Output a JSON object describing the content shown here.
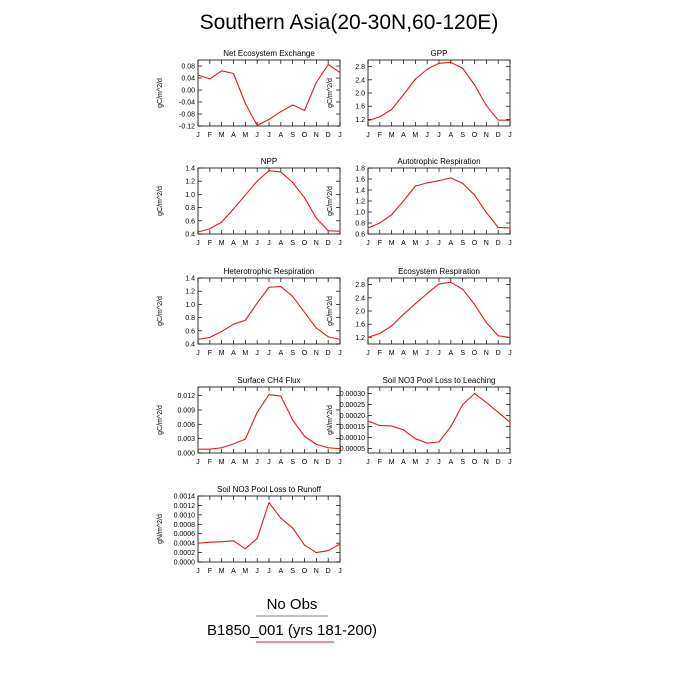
{
  "title": "Southern Asia(20-30N,60-120E)",
  "legend": {
    "obs_label": "No Obs",
    "model_label": "B1850_001 (yrs 181-200)",
    "model_color": "#e31a1c"
  },
  "months": [
    "J",
    "F",
    "M",
    "A",
    "M",
    "J",
    "J",
    "A",
    "S",
    "O",
    "N",
    "D",
    "J"
  ],
  "chart_data": [
    {
      "type": "line",
      "title": "Net Ecosystem Exchange",
      "ylabel": "gC/m^2/d",
      "ylim": [
        -0.12,
        0.1
      ],
      "yticks": [
        "0.08",
        "0.04",
        "0.00",
        "-0.04",
        "-0.08",
        "-0.12"
      ],
      "ytick_values": [
        0.08,
        0.04,
        0.0,
        -0.04,
        -0.08,
        -0.12
      ],
      "series": [
        {
          "values": [
            0.05,
            0.037,
            0.064,
            0.055,
            -0.045,
            -0.118,
            -0.098,
            -0.072,
            -0.05,
            -0.068,
            0.025,
            0.085,
            0.058
          ]
        }
      ]
    },
    {
      "type": "line",
      "title": "GPP",
      "ylabel": "gC/m^2/d",
      "ylim": [
        1.0,
        3.0
      ],
      "yticks": [
        "2.8",
        "2.4",
        "2.0",
        "1.6",
        "1.2"
      ],
      "ytick_values": [
        2.8,
        2.4,
        2.0,
        1.6,
        1.2
      ],
      "series": [
        {
          "values": [
            1.16,
            1.28,
            1.5,
            1.95,
            2.42,
            2.72,
            2.9,
            2.93,
            2.75,
            2.25,
            1.62,
            1.18,
            1.17
          ]
        }
      ]
    },
    {
      "type": "line",
      "title": "NPP",
      "ylabel": "gC/m^2/d",
      "ylim": [
        0.4,
        1.4
      ],
      "yticks": [
        "1.4",
        "1.2",
        "1.0",
        "0.8",
        "0.6",
        "0.4"
      ],
      "ytick_values": [
        1.4,
        1.2,
        1.0,
        0.8,
        0.6,
        0.4
      ],
      "series": [
        {
          "values": [
            0.43,
            0.48,
            0.58,
            0.78,
            0.99,
            1.2,
            1.36,
            1.34,
            1.18,
            0.95,
            0.64,
            0.45,
            0.44
          ]
        }
      ]
    },
    {
      "type": "line",
      "title": "Autotrophic Respiration",
      "ylabel": "gC/m^2/d",
      "ylim": [
        0.6,
        1.8
      ],
      "yticks": [
        "1.8",
        "1.6",
        "1.4",
        "1.2",
        "1.0",
        "0.8",
        "0.6"
      ],
      "ytick_values": [
        1.8,
        1.6,
        1.4,
        1.2,
        1.0,
        0.8,
        0.6
      ],
      "series": [
        {
          "values": [
            0.71,
            0.8,
            0.95,
            1.2,
            1.47,
            1.53,
            1.57,
            1.62,
            1.52,
            1.31,
            0.99,
            0.72,
            0.71
          ]
        }
      ]
    },
    {
      "type": "line",
      "title": "Heterotrophic Respiration",
      "ylabel": "gC/m^2/d",
      "ylim": [
        0.4,
        1.4
      ],
      "yticks": [
        "1.4",
        "1.2",
        "1.0",
        "0.8",
        "0.6",
        "0.4"
      ],
      "ytick_values": [
        1.4,
        1.2,
        1.0,
        0.8,
        0.6,
        0.4
      ],
      "series": [
        {
          "values": [
            0.47,
            0.5,
            0.59,
            0.7,
            0.76,
            1.02,
            1.26,
            1.27,
            1.12,
            0.88,
            0.64,
            0.51,
            0.47
          ]
        }
      ]
    },
    {
      "type": "line",
      "title": "Ecosystem Respiration",
      "ylabel": "gC/m^2/d",
      "ylim": [
        1.0,
        3.0
      ],
      "yticks": [
        "2.8",
        "2.4",
        "2.0",
        "1.6",
        "1.2"
      ],
      "ytick_values": [
        2.8,
        2.4,
        2.0,
        1.6,
        1.2
      ],
      "series": [
        {
          "values": [
            1.2,
            1.32,
            1.55,
            1.9,
            2.22,
            2.53,
            2.82,
            2.87,
            2.66,
            2.2,
            1.65,
            1.25,
            1.2
          ]
        }
      ]
    },
    {
      "type": "line",
      "title": "Surface CH4 Flux",
      "ylabel": "gC/m^2/d",
      "ylim": [
        0.0,
        0.0138
      ],
      "yticks": [
        "0.012",
        "0.009",
        "0.006",
        "0.003",
        "0.000"
      ],
      "ytick_values": [
        0.012,
        0.009,
        0.006,
        0.003,
        0.0
      ],
      "series": [
        {
          "values": [
            0.0008,
            0.0008,
            0.0011,
            0.0019,
            0.0029,
            0.0085,
            0.0122,
            0.0119,
            0.0069,
            0.0035,
            0.0018,
            0.0011,
            0.0009
          ]
        }
      ]
    },
    {
      "type": "line",
      "title": "Soil NO3 Pool Loss to Leaching",
      "ylabel": "gN/m^2/d",
      "ylim": [
        3e-05,
        0.00033
      ],
      "yticks": [
        "0.00030",
        "0.00025",
        "0.00020",
        "0.00015",
        "0.00010",
        "0.00005"
      ],
      "ytick_values": [
        0.0003,
        0.00025,
        0.0002,
        0.00015,
        0.0001,
        5e-05
      ],
      "series": [
        {
          "values": [
            0.000175,
            0.000155,
            0.000153,
            0.000135,
            9.5e-05,
            7.5e-05,
            8e-05,
            0.00015,
            0.00025,
            0.0003,
            0.00026,
            0.000215,
            0.00017
          ]
        }
      ]
    },
    {
      "type": "line",
      "title": "Soil NO3 Pool Loss to Runoff",
      "ylabel": "gN/m^2/d",
      "ylim": [
        0.0,
        0.0014
      ],
      "yticks": [
        "0.0014",
        "0.0012",
        "0.0010",
        "0.0008",
        "0.0006",
        "0.0004",
        "0.0002",
        "0.0000"
      ],
      "ytick_values": [
        0.0014,
        0.0012,
        0.001,
        0.0008,
        0.0006,
        0.0004,
        0.0002,
        0.0
      ],
      "series": [
        {
          "values": [
            0.0004,
            0.00042,
            0.00043,
            0.00045,
            0.00028,
            0.0005,
            0.00126,
            0.00093,
            0.00072,
            0.00036,
            0.0002,
            0.00024,
            0.00038
          ]
        }
      ]
    }
  ]
}
